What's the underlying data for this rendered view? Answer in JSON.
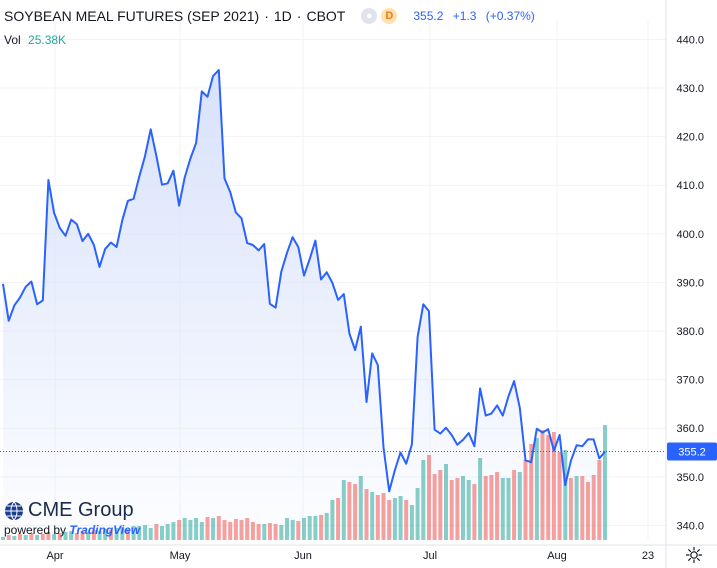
{
  "header": {
    "symbol": "SOYBEAN MEAL FUTURES (SEP 2021)",
    "interval": "1D",
    "exchange": "CBOT",
    "badge": "D",
    "last": "355.2",
    "change": "+1.3",
    "change_pct": "(+0.37%)",
    "vol_label": "Vol",
    "vol_value": "25.38K"
  },
  "branding": {
    "logo": "CME Group",
    "powered_by": "powered by",
    "powered_brand": "TradingView"
  },
  "colors": {
    "line": "#2962ff",
    "area": "#d6e0fb",
    "vol_up": "#26a69a",
    "vol_down": "#ef5350",
    "price_badge": "#2962ff"
  },
  "icons": {
    "settings": "gear-icon",
    "visibility": "eye-icon",
    "logo": "globe-icon"
  },
  "chart_data": {
    "type": "area",
    "ylim": [
      337,
      444
    ],
    "y_ticks": [
      "440.0",
      "430.0",
      "420.0",
      "410.0",
      "400.0",
      "390.0",
      "380.0",
      "370.0",
      "360.0",
      "350.0",
      "340.0"
    ],
    "x_ticks": [
      "Apr",
      "May",
      "Jun",
      "Jul",
      "Aug",
      "23"
    ],
    "current_price": "355.2",
    "price": [
      389.7,
      382.1,
      385.3,
      386.9,
      389.1,
      390.2,
      385.5,
      386.3,
      411.1,
      404.3,
      401.2,
      399.6,
      402.9,
      402.0,
      398.5,
      400.0,
      397.7,
      393.2,
      396.9,
      398.2,
      397.3,
      402.8,
      406.8,
      407.2,
      411.8,
      416.0,
      421.5,
      416.1,
      410.1,
      410.4,
      413.0,
      405.8,
      411.6,
      415.5,
      418.7,
      429.3,
      428.2,
      432.5,
      433.7,
      411.4,
      408.6,
      404.4,
      403.2,
      398.1,
      397.7,
      396.6,
      397.9,
      385.6,
      384.8,
      392.2,
      396.1,
      399.3,
      397.3,
      391.4,
      394.8,
      398.6,
      390.6,
      392.1,
      389.9,
      386.4,
      387.6,
      379.5,
      376.1,
      380.9,
      365.4,
      375.4,
      373.0,
      356.1,
      347.0,
      351.4,
      355.0,
      352.7,
      356.7,
      378.8,
      385.5,
      384.1,
      359.7,
      358.9,
      360.1,
      358.6,
      356.6,
      357.6,
      359.0,
      356.3,
      368.2,
      362.6,
      363.0,
      364.7,
      362.6,
      366.6,
      369.7,
      364.2,
      353.4,
      353.0,
      359.9,
      359.1,
      359.8,
      355.4,
      358.6,
      348.3,
      353.3,
      356.5,
      356.3,
      357.7,
      357.7,
      353.8,
      355.2
    ],
    "volume": [
      0,
      0,
      0,
      0,
      0,
      0,
      0,
      0,
      0,
      0,
      0,
      0,
      0,
      0,
      0,
      0,
      0,
      0,
      0,
      0,
      0,
      0,
      0,
      0,
      0,
      0,
      0,
      0,
      0,
      0,
      0,
      0,
      0,
      0,
      0,
      0,
      0,
      0,
      0,
      0,
      0,
      0,
      0,
      0,
      0,
      0,
      0,
      0,
      0,
      0,
      0,
      0,
      0,
      0,
      0,
      0,
      0,
      0,
      0,
      0,
      0,
      0,
      0,
      0,
      0,
      0,
      0,
      0,
      0,
      0,
      0,
      0,
      0,
      0,
      0,
      0,
      0,
      0,
      0,
      0,
      0,
      0,
      0,
      0,
      0,
      0,
      0,
      0,
      0,
      0,
      0,
      0,
      0,
      0,
      0,
      0,
      0,
      0,
      0,
      0,
      0,
      0,
      0,
      0,
      0,
      0,
      0
    ],
    "volume_up": [
      true,
      false,
      true,
      false,
      true,
      false,
      true,
      false,
      false,
      true,
      false,
      true,
      true,
      false,
      false,
      true,
      false,
      true,
      true,
      false,
      true,
      true,
      false,
      true,
      true,
      true,
      true,
      false,
      true,
      true,
      true,
      false,
      true,
      true,
      true,
      true,
      false,
      true,
      false,
      false,
      false,
      false,
      false,
      false,
      false,
      false,
      true,
      false,
      false,
      true,
      true,
      true,
      false,
      true,
      true,
      true,
      false,
      true,
      true,
      false,
      true,
      false,
      false,
      true,
      false,
      true,
      false,
      false,
      false,
      true,
      true,
      false,
      true,
      true,
      true,
      false,
      false,
      false,
      true,
      false,
      false,
      true,
      true,
      false,
      true,
      false,
      false,
      false,
      true,
      true,
      false,
      true,
      false,
      false,
      true,
      false,
      false,
      false,
      false,
      true,
      false,
      true,
      false,
      false,
      false,
      false,
      true
    ],
    "volume_height": [
      3,
      5,
      4,
      6,
      5,
      7,
      5,
      6,
      8,
      6,
      7,
      8,
      9,
      7,
      9,
      8,
      10,
      9,
      11,
      10,
      12,
      13,
      11,
      14,
      14,
      15,
      12,
      16,
      14,
      16,
      18,
      20,
      22,
      20,
      22,
      18,
      23,
      22,
      24,
      20,
      18,
      21,
      20,
      22,
      18,
      16,
      16,
      17,
      16,
      15,
      22,
      20,
      19,
      22,
      24,
      24,
      25,
      27,
      40,
      42,
      60,
      58,
      56,
      64,
      51,
      48,
      45,
      47,
      40,
      42,
      44,
      40,
      35,
      52,
      80,
      85,
      66,
      70,
      76,
      60,
      62,
      64,
      60,
      56,
      82,
      64,
      65,
      68,
      62,
      62,
      70,
      68,
      80,
      96,
      102,
      110,
      105,
      108,
      88,
      90,
      62,
      64,
      64,
      58,
      65,
      80,
      115
    ]
  }
}
